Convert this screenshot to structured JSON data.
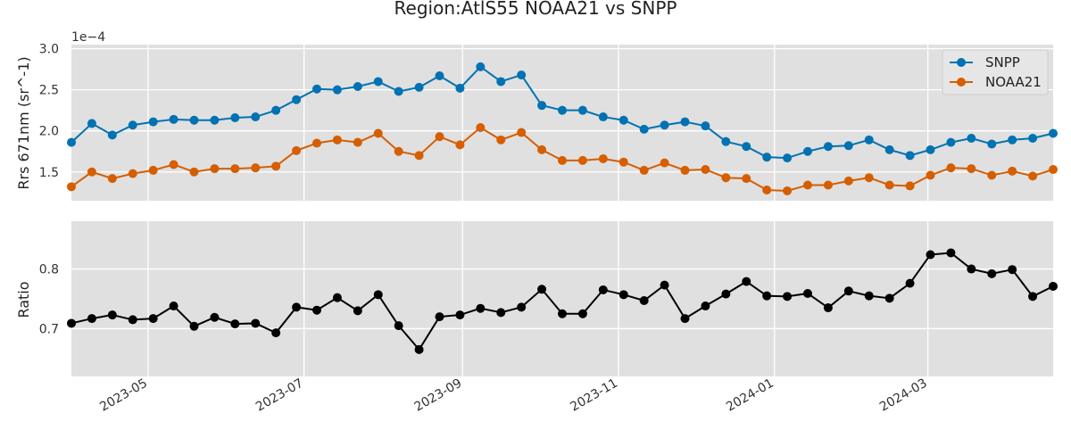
{
  "chart_data": {
    "type": "line",
    "title": "Region:AtlS55 NOAA21 vs SNPP",
    "x": [
      "2023-04-01",
      "2023-04-09",
      "2023-04-17",
      "2023-04-25",
      "2023-05-03",
      "2023-05-11",
      "2023-05-19",
      "2023-05-27",
      "2023-06-04",
      "2023-06-12",
      "2023-06-20",
      "2023-06-28",
      "2023-07-06",
      "2023-07-14",
      "2023-07-22",
      "2023-07-30",
      "2023-08-07",
      "2023-08-15",
      "2023-08-23",
      "2023-08-31",
      "2023-09-08",
      "2023-09-16",
      "2023-09-24",
      "2023-10-02",
      "2023-10-10",
      "2023-10-18",
      "2023-10-26",
      "2023-11-03",
      "2023-11-11",
      "2023-11-19",
      "2023-11-27",
      "2023-12-05",
      "2023-12-13",
      "2023-12-21",
      "2023-12-29",
      "2024-01-06",
      "2024-01-14",
      "2024-01-22",
      "2024-01-30",
      "2024-02-07",
      "2024-02-15",
      "2024-02-23",
      "2024-03-02",
      "2024-03-10",
      "2024-03-18",
      "2024-03-26",
      "2024-04-03",
      "2024-04-11",
      "2024-04-19"
    ],
    "xticks": [
      "2023-05",
      "2023-07",
      "2023-09",
      "2023-11",
      "2024-01",
      "2024-03"
    ],
    "grid": true,
    "panels": [
      {
        "ylabel": "Rrs 671nm (sr^-1)",
        "offset_text": "1e−4",
        "ylim": [
          1.15,
          3.05
        ],
        "yticks": [
          "3.0",
          "2.5",
          "2.0",
          "1.5"
        ],
        "legend": "top-right",
        "series": [
          {
            "name": "SNPP",
            "color": "#0072B2",
            "values": [
              1.86,
              2.09,
              1.95,
              2.07,
              2.11,
              2.14,
              2.13,
              2.13,
              2.16,
              2.17,
              2.25,
              2.38,
              2.51,
              2.5,
              2.54,
              2.6,
              2.48,
              2.53,
              2.67,
              2.52,
              2.78,
              2.6,
              2.68,
              2.31,
              2.25,
              2.25,
              2.17,
              2.13,
              2.02,
              2.07,
              2.11,
              2.06,
              1.87,
              1.81,
              1.68,
              1.67,
              1.75,
              1.81,
              1.82,
              1.89,
              1.77,
              1.7,
              1.77,
              1.86,
              1.91,
              1.84,
              1.89,
              1.91,
              1.97
            ]
          },
          {
            "name": "NOAA21",
            "color": "#D55E00",
            "values": [
              1.32,
              1.5,
              1.42,
              1.48,
              1.52,
              1.59,
              1.5,
              1.54,
              1.54,
              1.55,
              1.57,
              1.76,
              1.85,
              1.89,
              1.86,
              1.97,
              1.75,
              1.7,
              1.93,
              1.83,
              2.04,
              1.89,
              1.98,
              1.77,
              1.64,
              1.64,
              1.66,
              1.62,
              1.52,
              1.61,
              1.52,
              1.53,
              1.43,
              1.42,
              1.28,
              1.27,
              1.34,
              1.34,
              1.39,
              1.43,
              1.34,
              1.33,
              1.46,
              1.55,
              1.54,
              1.46,
              1.51,
              1.45,
              1.53
            ]
          }
        ]
      },
      {
        "ylabel": "Ratio",
        "ylim": [
          0.62,
          0.88
        ],
        "yticks": [
          "0.8",
          "0.7"
        ],
        "series": [
          {
            "name": "",
            "color": "#000000",
            "values": [
              0.709,
              0.717,
              0.723,
              0.715,
              0.717,
              0.738,
              0.704,
              0.719,
              0.708,
              0.709,
              0.693,
              0.736,
              0.731,
              0.752,
              0.73,
              0.757,
              0.705,
              0.665,
              0.72,
              0.723,
              0.734,
              0.727,
              0.736,
              0.766,
              0.725,
              0.725,
              0.765,
              0.757,
              0.747,
              0.773,
              0.717,
              0.738,
              0.758,
              0.779,
              0.755,
              0.754,
              0.759,
              0.735,
              0.763,
              0.755,
              0.751,
              0.776,
              0.824,
              0.827,
              0.8,
              0.792,
              0.799,
              0.754,
              0.771
            ]
          }
        ]
      }
    ]
  }
}
